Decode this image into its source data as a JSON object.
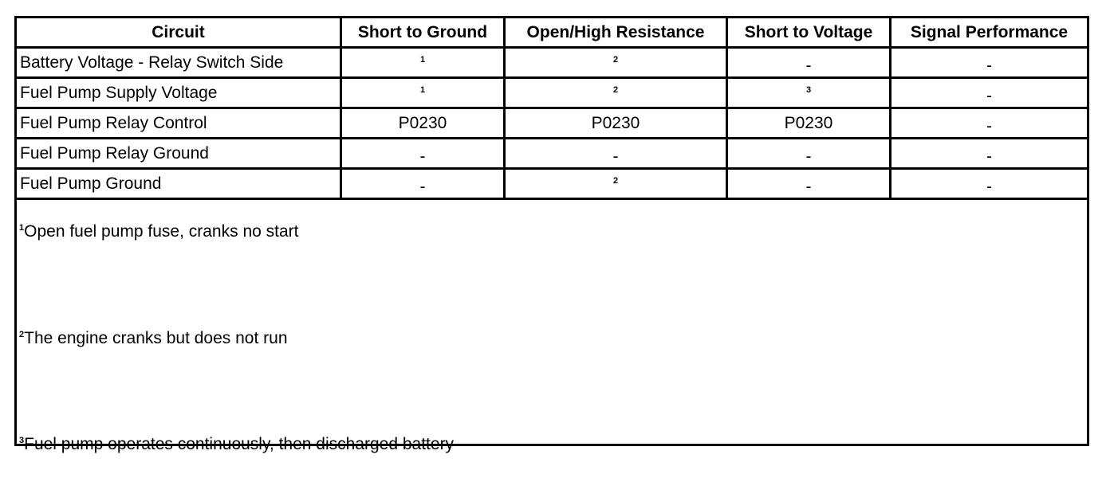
{
  "table": {
    "headers": [
      "Circuit",
      "Short to Ground",
      "Open/High Resistance",
      "Short to Voltage",
      "Signal Performance"
    ],
    "rows": [
      {
        "circuit": "Battery Voltage - Relay Switch Side",
        "cells": [
          "1",
          "2",
          "-",
          "-"
        ]
      },
      {
        "circuit": "Fuel Pump Supply Voltage",
        "cells": [
          "1",
          "2",
          "3",
          "-"
        ]
      },
      {
        "circuit": "Fuel Pump Relay Control",
        "cells": [
          "P0230",
          "P0230",
          "P0230",
          "-"
        ]
      },
      {
        "circuit": "Fuel Pump Relay Ground",
        "cells": [
          "-",
          "-",
          "-",
          "-"
        ]
      },
      {
        "circuit": "Fuel Pump Ground",
        "cells": [
          "-",
          "2",
          "-",
          "-"
        ]
      }
    ]
  },
  "footnotes": [
    {
      "mark": "1",
      "text": "Open fuel pump fuse, cranks no start"
    },
    {
      "mark": "2",
      "text": "The engine cranks but does not run"
    },
    {
      "mark": "3",
      "text": "Fuel pump operates continuously, then discharged battery"
    }
  ]
}
